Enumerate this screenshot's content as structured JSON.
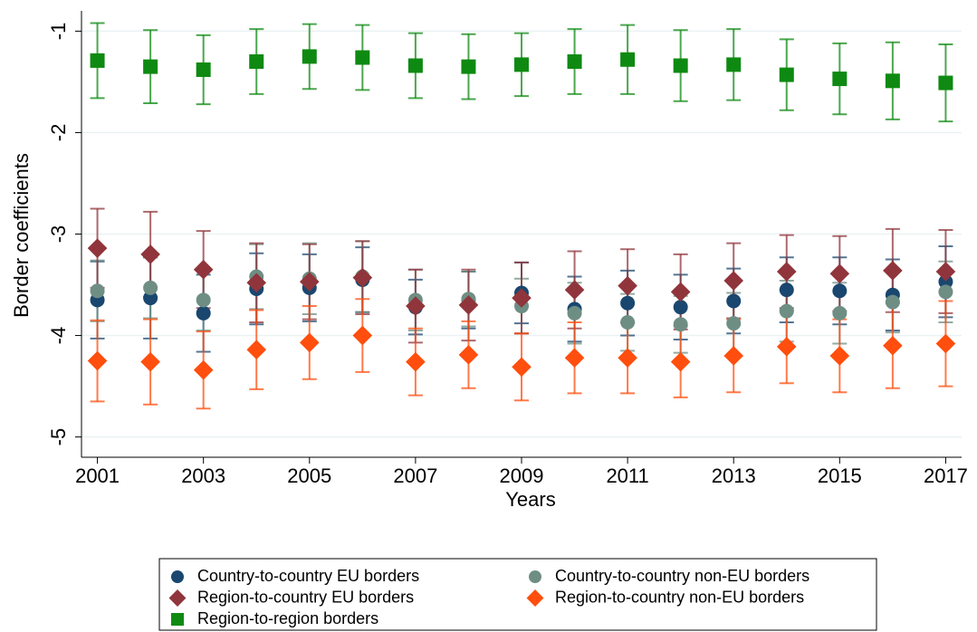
{
  "chart_data": {
    "type": "errorbar",
    "x_label": "Years",
    "y_label": "Border coefficients",
    "x": [
      2001,
      2002,
      2003,
      2004,
      2005,
      2006,
      2007,
      2008,
      2009,
      2010,
      2011,
      2012,
      2013,
      2014,
      2015,
      2016,
      2017
    ],
    "xlim": [
      2000.7,
      2017.3
    ],
    "xticks": [
      2001,
      2003,
      2005,
      2007,
      2009,
      2011,
      2013,
      2015,
      2017
    ],
    "ylim": [
      -5.2,
      -0.8
    ],
    "yticks": [
      -1,
      -2,
      -3,
      -4,
      -5
    ],
    "grid": true,
    "legend": "bottom",
    "series": [
      {
        "name": "Country-to-country EU borders",
        "color": "#1a476f",
        "marker": "circle",
        "values": [
          -3.65,
          -3.63,
          -3.78,
          -3.54,
          -3.53,
          -3.45,
          -3.72,
          -3.65,
          -3.58,
          -3.74,
          -3.68,
          -3.72,
          -3.66,
          -3.55,
          -3.56,
          -3.6,
          -3.47
        ],
        "errors": [
          0.38,
          0.4,
          0.38,
          0.35,
          0.33,
          0.32,
          0.27,
          0.28,
          0.3,
          0.32,
          0.32,
          0.32,
          0.32,
          0.32,
          0.33,
          0.35,
          0.35
        ]
      },
      {
        "name": "Country-to-country non-EU borders",
        "color": "#6e8e84",
        "marker": "circle",
        "values": [
          -3.56,
          -3.53,
          -3.65,
          -3.42,
          -3.44,
          -3.42,
          -3.65,
          -3.64,
          -3.71,
          -3.78,
          -3.87,
          -3.89,
          -3.88,
          -3.76,
          -3.78,
          -3.67,
          -3.57
        ],
        "errors": [
          0.3,
          0.3,
          0.3,
          0.32,
          0.35,
          0.35,
          0.3,
          0.27,
          0.27,
          0.3,
          0.28,
          0.28,
          0.3,
          0.3,
          0.3,
          0.3,
          0.3
        ]
      },
      {
        "name": "Region-to-country EU borders",
        "color": "#90353b",
        "marker": "diamond",
        "values": [
          -3.14,
          -3.2,
          -3.35,
          -3.48,
          -3.47,
          -3.43,
          -3.71,
          -3.7,
          -3.63,
          -3.55,
          -3.51,
          -3.57,
          -3.46,
          -3.37,
          -3.39,
          -3.36,
          -3.37
        ],
        "errors": [
          0.39,
          0.42,
          0.38,
          0.39,
          0.37,
          0.36,
          0.36,
          0.35,
          0.35,
          0.38,
          0.36,
          0.37,
          0.37,
          0.36,
          0.37,
          0.41,
          0.41
        ]
      },
      {
        "name": "Region-to-country non-EU borders",
        "color": "#ff4e0d",
        "marker": "diamond",
        "values": [
          -4.25,
          -4.26,
          -4.34,
          -4.14,
          -4.07,
          -4.0,
          -4.26,
          -4.19,
          -4.31,
          -4.22,
          -4.22,
          -4.26,
          -4.2,
          -4.11,
          -4.2,
          -4.1,
          -4.08
        ],
        "errors": [
          0.4,
          0.42,
          0.38,
          0.39,
          0.36,
          0.36,
          0.33,
          0.33,
          0.33,
          0.35,
          0.35,
          0.35,
          0.36,
          0.36,
          0.36,
          0.42,
          0.42
        ]
      },
      {
        "name": "Region-to-region borders",
        "color": "#0e8a12",
        "marker": "square",
        "values": [
          -1.29,
          -1.35,
          -1.38,
          -1.3,
          -1.25,
          -1.26,
          -1.34,
          -1.35,
          -1.33,
          -1.3,
          -1.28,
          -1.34,
          -1.33,
          -1.43,
          -1.47,
          -1.49,
          -1.51
        ],
        "errors": [
          0.37,
          0.36,
          0.34,
          0.32,
          0.32,
          0.32,
          0.32,
          0.32,
          0.31,
          0.32,
          0.34,
          0.35,
          0.35,
          0.35,
          0.35,
          0.38,
          0.38
        ]
      }
    ]
  }
}
